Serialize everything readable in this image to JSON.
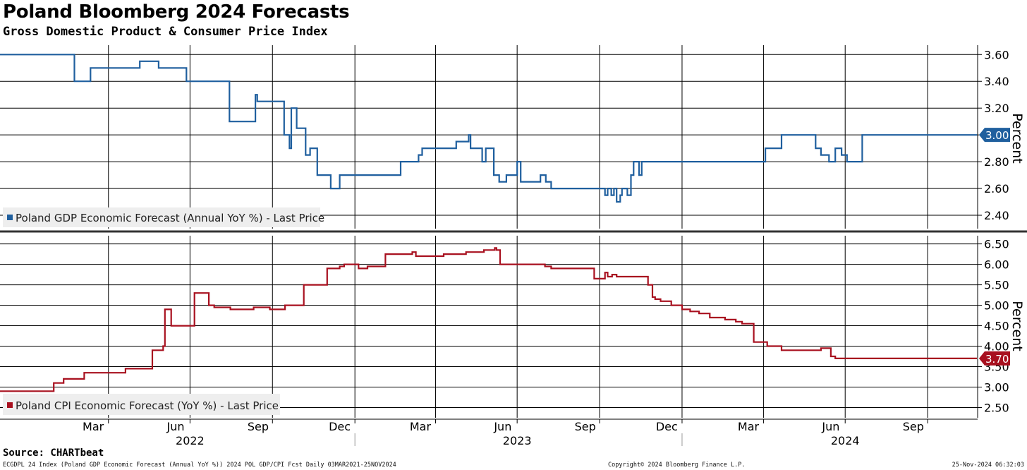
{
  "header": {
    "title": "Poland Bloomberg 2024 Forecasts",
    "subtitle": "Gross Domestic Product & Consumer Price Index"
  },
  "footer": {
    "source": "Source: CHARTbeat",
    "index_line": "ECGDPL 24 Index (Poland GDP Economic Forecast (Annual YoY %)) 2024 POL GDP/CPI Fcst  Daily 03MAR2021-25NOV2024",
    "copyright": "Copyright© 2024 Bloomberg Finance L.P.",
    "timestamp": "25-Nov-2024 06:32:03"
  },
  "colors": {
    "gdp": "#1f5f9e",
    "cpi": "#a8101f",
    "grid": "#000000",
    "legend_bg": "#eeeeee"
  },
  "chart_data": [
    {
      "type": "line",
      "id": "gdp",
      "title": "Poland GDP Economic Forecast",
      "ylabel": "Percent",
      "ylim": [
        2.3,
        3.67
      ],
      "yticks": [
        "3.60",
        "3.40",
        "3.20",
        "3.00",
        "2.80",
        "2.60",
        "2.40"
      ],
      "legend": "Poland GDP Economic Forecast (Annual YoY %) - Last Price",
      "last_value": "3.00",
      "series": [
        {
          "name": "Poland GDP Economic Forecast (Annual YoY %) - Last Price",
          "x": [
            "2021-12-01",
            "2022-02-05",
            "2022-02-22",
            "2022-03-12",
            "2022-05-06",
            "2022-05-14",
            "2022-05-27",
            "2022-06-25",
            "2022-06-27",
            "2022-07-10",
            "2022-07-14",
            "2022-07-20",
            "2022-07-21",
            "2022-07-23",
            "2022-08-07",
            "2022-08-14",
            "2022-08-23",
            "2022-09-06",
            "2022-09-10",
            "2022-09-12",
            "2022-09-14",
            "2022-09-30",
            "2022-10-01",
            "2022-10-14",
            "2022-10-20",
            "2022-10-22",
            "2022-10-28",
            "2022-11-07",
            "2022-11-12",
            "2022-11-20",
            "2022-12-05",
            "2022-12-15",
            "2022-12-21",
            "2022-12-22",
            "2023-01-01",
            "2023-01-10",
            "2023-01-15",
            "2023-02-21",
            "2023-03-13",
            "2023-03-17",
            "2023-03-20",
            "2023-03-22",
            "2023-03-25",
            "2023-04-24",
            "2023-05-08",
            "2023-05-10",
            "2023-05-13",
            "2023-05-23",
            "2023-05-27",
            "2023-06-05",
            "2023-06-08",
            "2023-06-11",
            "2023-06-19",
            "2023-07-01",
            "2023-07-02",
            "2023-07-05",
            "2023-07-27",
            "2023-08-02",
            "2023-08-08",
            "2023-09-27",
            "2023-10-07",
            "2023-10-10",
            "2023-10-14",
            "2023-10-17",
            "2023-10-20",
            "2023-10-24",
            "2023-10-26",
            "2023-11-01",
            "2023-11-05",
            "2023-11-08",
            "2023-11-14",
            "2023-11-17",
            "2023-11-20",
            "2023-11-27",
            "2023-12-01",
            "2023-12-05",
            "2023-12-09",
            "2023-12-14",
            "2023-12-20",
            "2023-12-27",
            "2024-01-02",
            "2024-04-01",
            "2024-04-03",
            "2024-04-19",
            "2024-04-21",
            "2024-05-29",
            "2024-06-02",
            "2024-06-04",
            "2024-06-13",
            "2024-06-20",
            "2024-06-27",
            "2024-07-03",
            "2024-07-20",
            "2024-07-26",
            "2024-08-04",
            "2024-08-06",
            "2024-08-15",
            "2024-11-25"
          ],
          "y": [
            3.6,
            3.6,
            3.4,
            3.5,
            3.55,
            3.55,
            3.5,
            3.5,
            3.4,
            3.4,
            3.4,
            3.4,
            3.4,
            3.4,
            3.4,
            3.1,
            3.1,
            3.1,
            3.1,
            3.3,
            3.25,
            3.25,
            3.25,
            3.0,
            2.9,
            3.2,
            3.05,
            2.85,
            2.9,
            2.7,
            2.6,
            2.7,
            2.7,
            2.7,
            2.7,
            2.7,
            2.7,
            2.8,
            2.85,
            2.9,
            2.9,
            2.9,
            2.9,
            2.95,
            3.0,
            2.9,
            2.9,
            2.8,
            2.9,
            2.7,
            2.7,
            2.65,
            2.7,
            2.8,
            2.8,
            2.65,
            2.7,
            2.65,
            2.6,
            2.6,
            2.55,
            2.6,
            2.55,
            2.6,
            2.5,
            2.55,
            2.6,
            2.55,
            2.7,
            2.8,
            2.7,
            2.8,
            2.8,
            2.8,
            2.8,
            2.8,
            2.8,
            2.8,
            2.8,
            2.8,
            2.8,
            2.8,
            2.9,
            2.9,
            3.0,
            2.9,
            2.9,
            2.85,
            2.8,
            2.9,
            2.85,
            2.8,
            3.0,
            3.0,
            3.0,
            3.0,
            3.0,
            3.0
          ]
        }
      ]
    },
    {
      "type": "line",
      "id": "cpi",
      "title": "Poland CPI Economic Forecast",
      "ylabel": "Percent",
      "ylim": [
        2.25,
        6.7
      ],
      "yticks": [
        "6.50",
        "6.00",
        "5.50",
        "5.00",
        "4.50",
        "4.00",
        "3.50",
        "3.00",
        "2.50"
      ],
      "legend": "Poland CPI Economic Forecast (YoY %) - Last Price",
      "last_value": "3.70",
      "series": [
        {
          "name": "Poland CPI Economic Forecast (YoY %) - Last Price",
          "x": [
            "2021-12-01",
            "2022-01-25",
            "2022-01-30",
            "2022-02-10",
            "2022-03-05",
            "2022-04-20",
            "2022-05-20",
            "2022-06-01",
            "2022-06-03",
            "2022-06-10",
            "2022-07-06",
            "2022-07-22",
            "2022-07-28",
            "2022-08-15",
            "2022-09-10",
            "2022-09-28",
            "2022-10-15",
            "2022-10-25",
            "2022-11-05",
            "2022-12-01",
            "2022-12-15",
            "2022-12-20",
            "2023-01-05",
            "2023-01-15",
            "2023-01-21",
            "2023-02-04",
            "2023-03-06",
            "2023-03-10",
            "2023-04-10",
            "2023-05-05",
            "2023-05-25",
            "2023-06-06",
            "2023-06-08",
            "2023-06-12",
            "2023-06-14",
            "2023-08-01",
            "2023-08-08",
            "2023-09-25",
            "2023-10-07",
            "2023-10-10",
            "2023-10-15",
            "2023-10-20",
            "2023-10-27",
            "2023-11-24",
            "2023-11-29",
            "2023-12-02",
            "2023-12-08",
            "2023-12-14",
            "2023-12-20",
            "2024-01-01",
            "2024-01-10",
            "2024-01-20",
            "2024-02-01",
            "2024-02-10",
            "2024-02-18",
            "2024-03-01",
            "2024-03-08",
            "2024-03-21",
            "2024-04-05",
            "2024-04-21",
            "2024-06-04",
            "2024-06-15",
            "2024-06-20",
            "2024-11-25"
          ],
          "y": [
            2.9,
            2.9,
            3.1,
            3.2,
            3.35,
            3.45,
            3.9,
            4.0,
            4.9,
            4.5,
            5.3,
            5.0,
            4.95,
            4.9,
            4.95,
            4.9,
            5.0,
            5.0,
            5.5,
            5.9,
            5.95,
            6.0,
            5.9,
            5.95,
            5.95,
            6.25,
            6.3,
            6.2,
            6.25,
            6.3,
            6.35,
            6.4,
            6.35,
            6.0,
            6.0,
            5.95,
            5.9,
            5.65,
            5.8,
            5.7,
            5.75,
            5.7,
            5.7,
            5.5,
            5.2,
            5.15,
            5.1,
            5.1,
            5.0,
            4.9,
            4.85,
            4.8,
            4.7,
            4.7,
            4.65,
            4.6,
            4.55,
            4.1,
            4.0,
            3.9,
            3.95,
            3.75,
            3.7,
            3.7
          ]
        }
      ]
    }
  ],
  "x_axis": {
    "month_labels": [
      {
        "label": "Mar",
        "date": "2022-03-15"
      },
      {
        "label": "Jun",
        "date": "2022-06-15"
      },
      {
        "label": "Sep",
        "date": "2022-09-15"
      },
      {
        "label": "Dec",
        "date": "2022-12-15"
      },
      {
        "label": "Mar",
        "date": "2023-03-15"
      },
      {
        "label": "Jun",
        "date": "2023-06-15"
      },
      {
        "label": "Sep",
        "date": "2023-09-15"
      },
      {
        "label": "Dec",
        "date": "2023-12-15"
      },
      {
        "label": "Mar",
        "date": "2024-03-15"
      },
      {
        "label": "Jun",
        "date": "2024-06-15"
      },
      {
        "label": "Sep",
        "date": "2024-09-15"
      }
    ],
    "gridlines": [
      "2022-04-01",
      "2022-07-01",
      "2022-10-01",
      "2023-01-01",
      "2023-04-01",
      "2023-07-01",
      "2023-10-01",
      "2024-01-01",
      "2024-04-01",
      "2024-07-01",
      "2024-10-01"
    ],
    "year_labels": [
      {
        "label": "2022",
        "date": "2022-07-01"
      },
      {
        "label": "2023",
        "date": "2023-07-01"
      },
      {
        "label": "2024",
        "date": "2024-07-01"
      }
    ],
    "year_separators": [
      "2023-01-01",
      "2024-01-01"
    ]
  }
}
